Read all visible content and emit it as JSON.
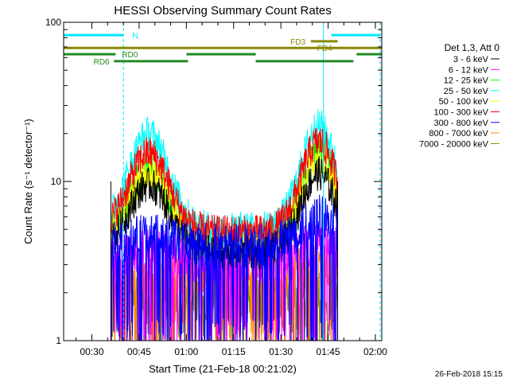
{
  "chart_data": {
    "type": "line",
    "title": "HESSI Observing Summary Count Rates",
    "ylabel": "Count Rate (s⁻¹ detector⁻¹)",
    "xlabel": "Start Time (21-Feb-18 00:21:02)",
    "yscale": "log",
    "ylim": [
      1,
      100
    ],
    "xlim_minutes": [
      0,
      101
    ],
    "x_ticks": [
      {
        "label": "00:30",
        "minute": 8.97
      },
      {
        "label": "00:45",
        "minute": 23.97
      },
      {
        "label": "01:00",
        "minute": 38.97
      },
      {
        "label": "01:15",
        "minute": 53.97
      },
      {
        "label": "01:30",
        "minute": 68.97
      },
      {
        "label": "01:45",
        "minute": 83.97
      },
      {
        "label": "02:00",
        "minute": 98.97
      }
    ],
    "y_ticks": [
      {
        "label": "1",
        "value": 1
      },
      {
        "label": "10",
        "value": 10
      },
      {
        "label": "100",
        "value": 100
      }
    ],
    "legend_title": "Det 1,3, Att 0",
    "series": [
      {
        "name": "3 - 6 keV",
        "color": "#000000"
      },
      {
        "name": "6 - 12 keV",
        "color": "#ff00ff"
      },
      {
        "name": "12 - 25 keV",
        "color": "#00ff00"
      },
      {
        "name": "25 - 50 keV",
        "color": "#00ffff"
      },
      {
        "name": "50 - 100 keV",
        "color": "#ffff00"
      },
      {
        "name": "100 - 300 keV",
        "color": "#ff0000"
      },
      {
        "name": "300 - 800 keV",
        "color": "#0000ff"
      },
      {
        "name": "800 - 7000 keV",
        "color": "#ff8800"
      },
      {
        "name": "7000 - 20000 keV",
        "color": "#888800"
      }
    ],
    "vertical_markers": [
      {
        "minute": 0.0,
        "style": "solid",
        "color": "#00e5ff"
      },
      {
        "minute": 19.0,
        "style": "dashed",
        "color": "#00e5ff"
      },
      {
        "minute": 82.5,
        "style": "solid",
        "color": "#00e5ff"
      },
      {
        "minute": 100.5,
        "style": "dashed",
        "color": "#00e5ff"
      }
    ],
    "flags": [
      {
        "label": "N",
        "color": "#00e5ff",
        "y_value": 83,
        "segments": [
          [
            0,
            19
          ],
          [
            85,
            100.5
          ]
        ],
        "label_minute": 21.8
      },
      {
        "label": "FD3",
        "color": "#888800",
        "y_value": 76,
        "segments": [
          [
            78.5,
            87
          ]
        ],
        "label_minute": 72
      },
      {
        "label": "FD4",
        "color": "#888800",
        "y_value": 69,
        "segments": [
          [
            0,
            101
          ]
        ],
        "label_minute": 80.5
      },
      {
        "label": "RD0",
        "color": "#228b22",
        "y_value": 63,
        "segments": [
          [
            0,
            16.5
          ],
          [
            39,
            61
          ],
          [
            93,
            101
          ]
        ],
        "label_minute": 18.5
      },
      {
        "label": "RD6",
        "color": "#228b22",
        "y_value": 57,
        "segments": [
          [
            16,
            39.5
          ],
          [
            61,
            92
          ]
        ],
        "label_minute": 9.5
      }
    ]
  },
  "footer": {
    "timestamp": "26-Feb-2018 15:15"
  }
}
